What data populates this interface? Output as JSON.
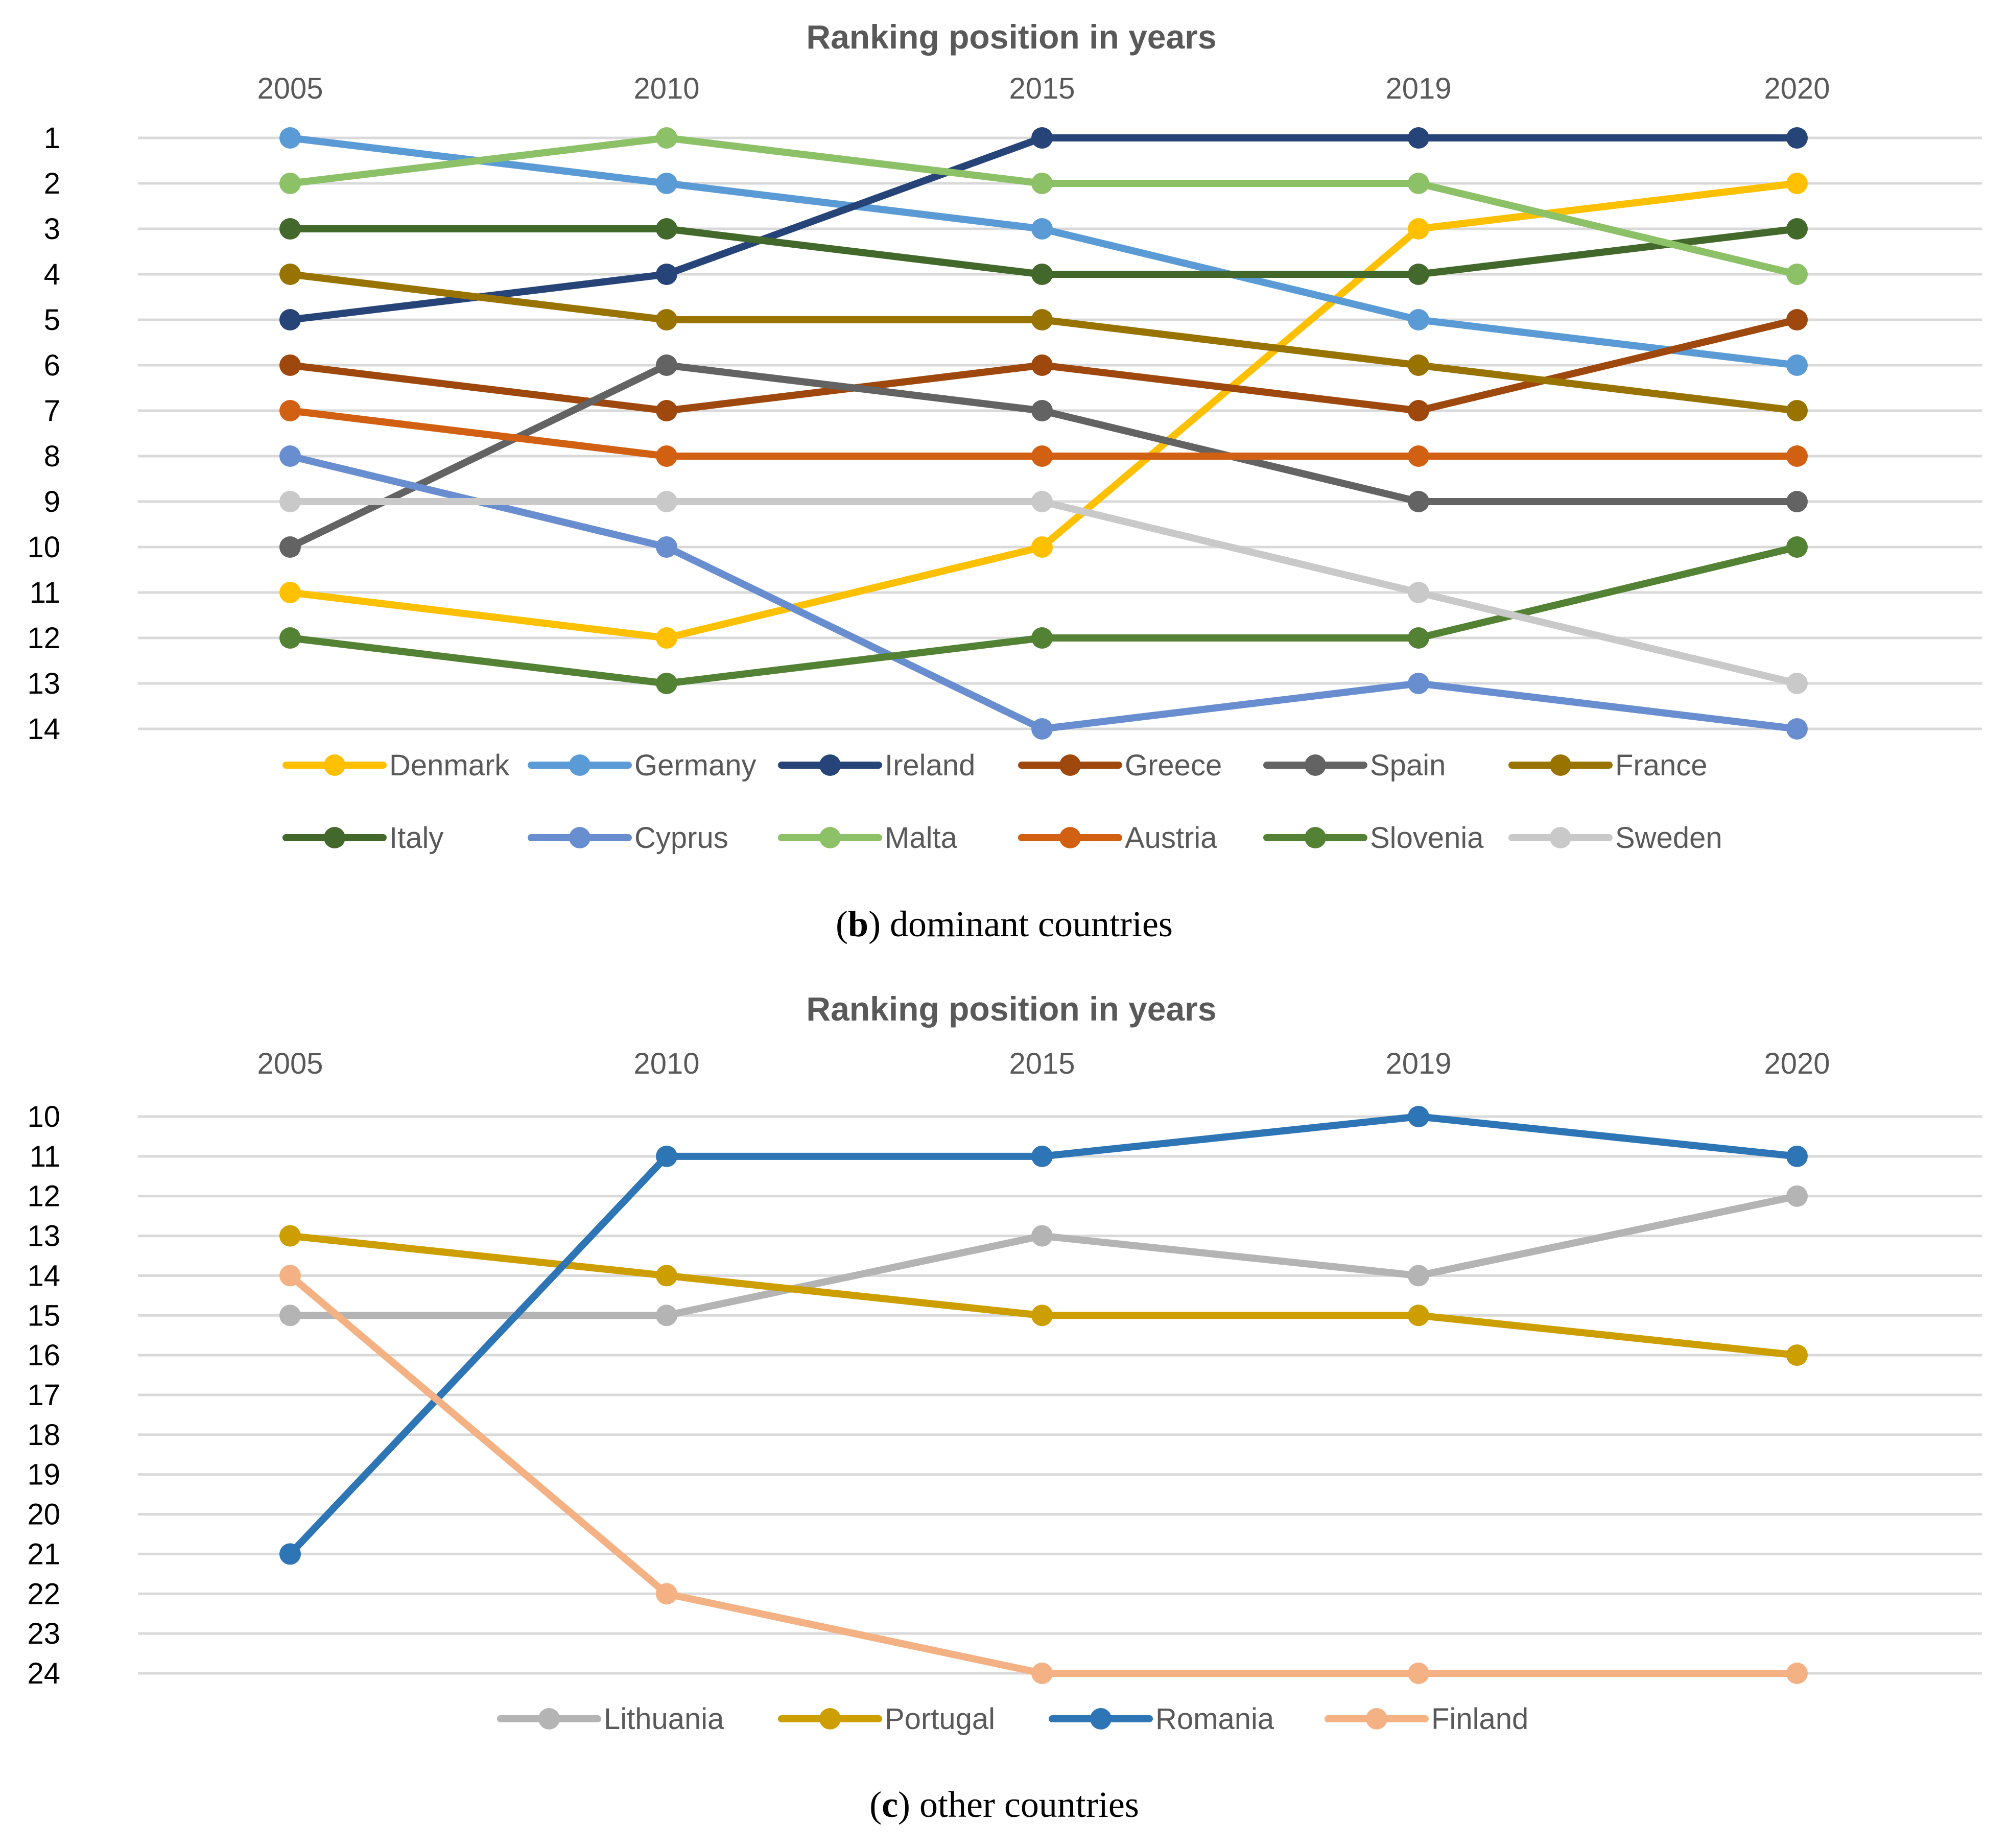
{
  "chart_data": [
    {
      "type": "line",
      "title": "Ranking position in years",
      "categories": [
        "2005",
        "2010",
        "2015",
        "2019",
        "2020"
      ],
      "y_axis": {
        "min": 1,
        "max": 14,
        "inverted": true,
        "ticks": [
          "1",
          "2",
          "3",
          "4",
          "5",
          "6",
          "7",
          "8",
          "9",
          "10",
          "11",
          "12",
          "13",
          "14"
        ]
      },
      "legend_position": "bottom",
      "caption": {
        "open": "(",
        "letter": "b",
        "rest": ") dominant countries"
      },
      "series": [
        {
          "name": "Denmark",
          "color": "#FFC000",
          "values": [
            11,
            12,
            10,
            3,
            2
          ]
        },
        {
          "name": "Germany",
          "color": "#5B9BD5",
          "values": [
            1,
            2,
            3,
            5,
            6
          ]
        },
        {
          "name": "Ireland",
          "color": "#264478",
          "values": [
            5,
            4,
            1,
            1,
            1
          ]
        },
        {
          "name": "Greece",
          "color": "#9E480E",
          "values": [
            6,
            7,
            6,
            7,
            5
          ]
        },
        {
          "name": "Spain",
          "color": "#636363",
          "values": [
            10,
            6,
            7,
            9,
            9
          ]
        },
        {
          "name": "France",
          "color": "#997300",
          "values": [
            4,
            5,
            5,
            6,
            7
          ]
        },
        {
          "name": "Italy",
          "color": "#43682B",
          "values": [
            3,
            3,
            4,
            4,
            3
          ]
        },
        {
          "name": "Cyprus",
          "color": "#698ED0",
          "values": [
            8,
            10,
            14,
            13,
            14
          ]
        },
        {
          "name": "Malta",
          "color": "#8CC168",
          "values": [
            2,
            1,
            2,
            2,
            4
          ]
        },
        {
          "name": "Austria",
          "color": "#D26012",
          "values": [
            7,
            8,
            8,
            8,
            8
          ]
        },
        {
          "name": "Slovenia",
          "color": "#548235",
          "values": [
            12,
            13,
            12,
            12,
            10
          ]
        },
        {
          "name": "Sweden",
          "color": "#C9C9C9",
          "values": [
            9,
            9,
            9,
            11,
            13
          ]
        }
      ]
    },
    {
      "type": "line",
      "title": "Ranking position in years",
      "categories": [
        "2005",
        "2010",
        "2015",
        "2019",
        "2020"
      ],
      "y_axis": {
        "min": 10,
        "max": 24,
        "inverted": true,
        "ticks": [
          "10",
          "11",
          "12",
          "13",
          "14",
          "15",
          "16",
          "17",
          "18",
          "19",
          "20",
          "21",
          "22",
          "23",
          "24"
        ]
      },
      "legend_position": "bottom",
      "caption": {
        "open": "(",
        "letter": "c",
        "rest": ") other countries"
      },
      "series": [
        {
          "name": "Lithuania",
          "color": "#B4B4B4",
          "values": [
            15,
            15,
            13,
            14,
            12
          ]
        },
        {
          "name": "Portugal",
          "color": "#CC9E00",
          "values": [
            13,
            14,
            15,
            15,
            16
          ]
        },
        {
          "name": "Romania",
          "color": "#2E75B6",
          "values": [
            21,
            11,
            11,
            10,
            11
          ]
        },
        {
          "name": "Finland",
          "color": "#F4B183",
          "values": [
            14,
            22,
            24,
            24,
            24
          ]
        }
      ]
    }
  ]
}
